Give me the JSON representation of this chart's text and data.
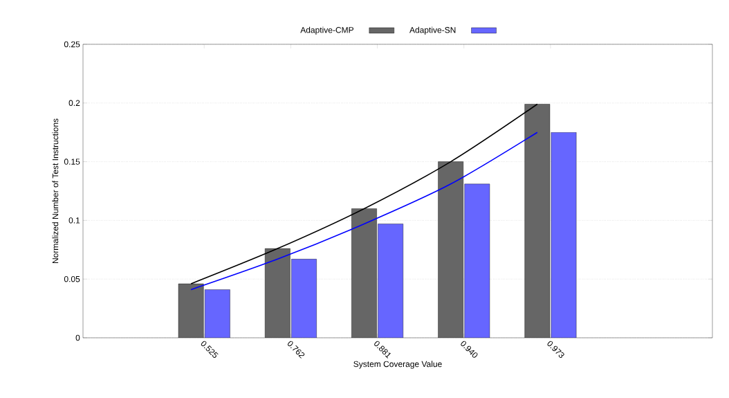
{
  "chart_data": {
    "type": "bar",
    "xlabel": "System Coverage Value",
    "ylabel": "Normalized Number of Test Instructions",
    "categories": [
      "0.525",
      "0.762",
      "0.881",
      "0.940",
      "0.973"
    ],
    "series": [
      {
        "name": "Adaptive-CMP",
        "color": "#666666",
        "values": [
          0.046,
          0.076,
          0.11,
          0.15,
          0.199
        ]
      },
      {
        "name": "Adaptive-SN",
        "color": "#6666ff",
        "values": [
          0.041,
          0.067,
          0.097,
          0.131,
          0.175
        ]
      },
      {
        "type": "line",
        "color": "#000000",
        "values": [
          0.046,
          0.076,
          0.11,
          0.15,
          0.199
        ]
      },
      {
        "type": "line",
        "color": "#0000ff",
        "values": [
          0.041,
          0.067,
          0.097,
          0.131,
          0.175
        ]
      }
    ],
    "ylim": [
      0,
      0.25
    ],
    "yticks": [
      0,
      0.05,
      0.1,
      0.15,
      0.2,
      0.25
    ],
    "grid": "y",
    "legend": "top"
  }
}
